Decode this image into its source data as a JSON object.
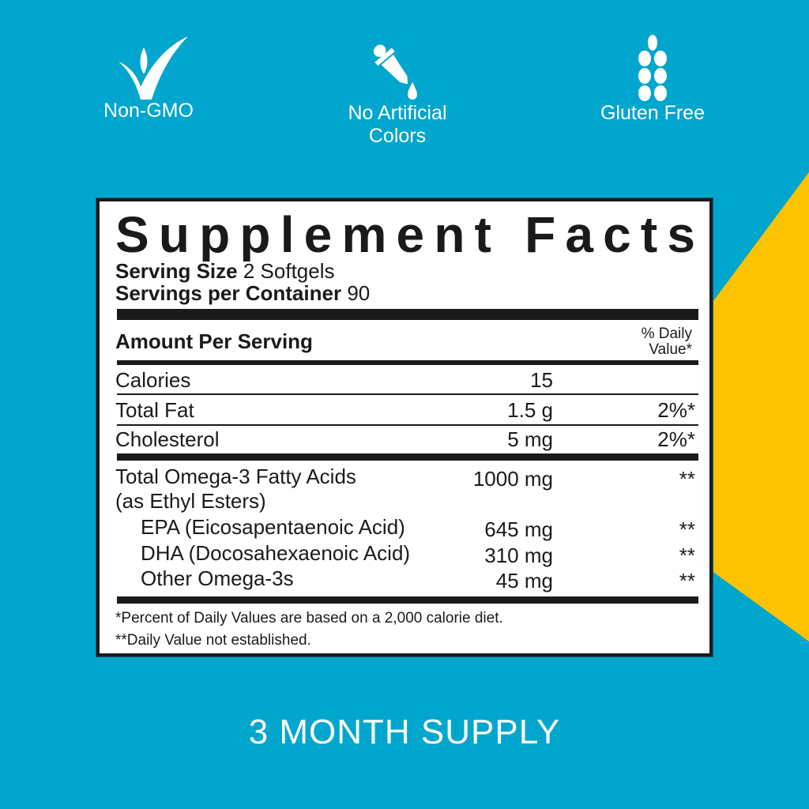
{
  "colors": {
    "background": "#00a6cd",
    "accent": "#fdc300",
    "text": "#1a1a1a"
  },
  "badges": [
    {
      "icon": "checkmark-sprout-icon",
      "label": "Non-GMO"
    },
    {
      "icon": "dropper-icon",
      "label_line1": "No Artificial",
      "label_line2": "Colors"
    },
    {
      "icon": "wheat-icon",
      "label": "Gluten Free"
    }
  ],
  "facts": {
    "title": "Supplement Facts",
    "serving_size_label": "Serving Size",
    "serving_size_value": "2 Softgels",
    "servings_label": "Servings per Container",
    "servings_value": "90",
    "amount_header": "Amount Per Serving",
    "dv_header_line1": "% Daily",
    "dv_header_line2": "Value*",
    "rows": [
      {
        "name": "Calories",
        "amount": "15",
        "dv": ""
      },
      {
        "name": "Total Fat",
        "amount": "1.5 g",
        "dv": "2%*"
      },
      {
        "name": "Cholesterol",
        "amount": "5 mg",
        "dv": "2%*"
      },
      {
        "name": "Total Omega-3 Fatty Acids",
        "sub": "(as Ethyl Esters)",
        "amount": "1000 mg",
        "dv": "**"
      },
      {
        "name": "EPA (Eicosapentaenoic Acid)",
        "amount": "645 mg",
        "dv": "**"
      },
      {
        "name": "DHA (Docosahexaenoic Acid)",
        "amount": "310 mg",
        "dv": "**"
      },
      {
        "name": "Other Omega-3s",
        "amount": "45 mg",
        "dv": "**"
      }
    ],
    "footnote1": "*Percent of Daily Values are based on a 2,000 calorie diet.",
    "footnote2": "**Daily Value not established."
  },
  "supply_text": "3 MONTH SUPPLY"
}
